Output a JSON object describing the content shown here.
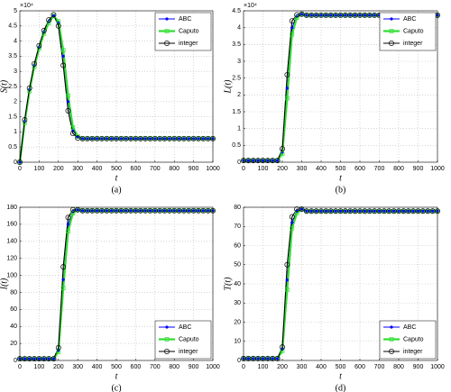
{
  "chart_data": [
    {
      "type": "line",
      "ylabel": "S(t)",
      "xlabel": "t",
      "caption": "(a)",
      "y_multiplier": "×10⁴",
      "xlim": [
        0,
        1000
      ],
      "xticks": [
        0,
        100,
        200,
        300,
        400,
        500,
        600,
        700,
        800,
        900,
        1000
      ],
      "ylim": [
        0,
        5
      ],
      "yticks": [
        0,
        0.5,
        1,
        1.5,
        2,
        2.5,
        3,
        3.5,
        4,
        4.5,
        5
      ],
      "grid": true,
      "legend": "upper right",
      "x": [
        0,
        25,
        50,
        75,
        100,
        125,
        150,
        175,
        200,
        225,
        250,
        275,
        300,
        325,
        350,
        375,
        400,
        425,
        450,
        475,
        500,
        525,
        550,
        575,
        600,
        625,
        650,
        675,
        700,
        725,
        750,
        775,
        800,
        825,
        850,
        875,
        900,
        925,
        950,
        975,
        1000
      ],
      "series": [
        {
          "name": "ABC",
          "color": "#0000ff",
          "marker": "dot",
          "values": [
            0,
            1.35,
            2.4,
            3.2,
            3.8,
            4.3,
            4.65,
            4.85,
            4.6,
            3.5,
            2.0,
            1.05,
            0.82,
            0.78,
            0.78,
            0.78,
            0.78,
            0.78,
            0.78,
            0.78,
            0.78,
            0.78,
            0.78,
            0.78,
            0.78,
            0.78,
            0.78,
            0.78,
            0.78,
            0.78,
            0.78,
            0.78,
            0.78,
            0.78,
            0.78,
            0.78,
            0.78,
            0.78,
            0.78,
            0.78,
            0.78
          ]
        },
        {
          "name": "Caputo",
          "color": "#33dd33",
          "marker": "square",
          "values": [
            0,
            1.3,
            2.35,
            3.15,
            3.75,
            4.25,
            4.6,
            4.83,
            4.65,
            3.7,
            2.2,
            1.15,
            0.85,
            0.78,
            0.78,
            0.78,
            0.78,
            0.78,
            0.78,
            0.78,
            0.78,
            0.78,
            0.78,
            0.78,
            0.78,
            0.78,
            0.78,
            0.78,
            0.78,
            0.78,
            0.78,
            0.78,
            0.78,
            0.78,
            0.78,
            0.78,
            0.78,
            0.78,
            0.78,
            0.78,
            0.78
          ]
        },
        {
          "name": "integer",
          "color": "#000000",
          "marker": "circle",
          "values": [
            0,
            1.4,
            2.45,
            3.25,
            3.85,
            4.35,
            4.7,
            4.87,
            4.5,
            3.2,
            1.7,
            0.95,
            0.8,
            0.78,
            0.78,
            0.78,
            0.78,
            0.78,
            0.78,
            0.78,
            0.78,
            0.78,
            0.78,
            0.78,
            0.78,
            0.78,
            0.78,
            0.78,
            0.78,
            0.78,
            0.78,
            0.78,
            0.78,
            0.78,
            0.78,
            0.78,
            0.78,
            0.78,
            0.78,
            0.78,
            0.78
          ]
        }
      ]
    },
    {
      "type": "line",
      "ylabel": "L(t)",
      "xlabel": "t",
      "caption": "(b)",
      "y_multiplier": "×10⁴",
      "xlim": [
        0,
        1000
      ],
      "xticks": [
        0,
        100,
        200,
        300,
        400,
        500,
        600,
        700,
        800,
        900,
        1000
      ],
      "ylim": [
        0,
        4.5
      ],
      "yticks": [
        0,
        0.5,
        1,
        1.5,
        2,
        2.5,
        3,
        3.5,
        4,
        4.5
      ],
      "grid": true,
      "legend": "upper right",
      "x": [
        0,
        25,
        50,
        75,
        100,
        125,
        150,
        175,
        200,
        225,
        250,
        275,
        300,
        325,
        350,
        375,
        400,
        425,
        450,
        475,
        500,
        525,
        550,
        575,
        600,
        625,
        650,
        675,
        700,
        725,
        750,
        775,
        800,
        825,
        850,
        875,
        900,
        925,
        950,
        975,
        1000
      ],
      "series": [
        {
          "name": "ABC",
          "color": "#0000ff",
          "marker": "dot",
          "values": [
            0.05,
            0.05,
            0.05,
            0.05,
            0.05,
            0.05,
            0.05,
            0.05,
            0.3,
            2.2,
            4.0,
            4.35,
            4.4,
            4.37,
            4.37,
            4.37,
            4.37,
            4.37,
            4.37,
            4.37,
            4.37,
            4.37,
            4.37,
            4.37,
            4.37,
            4.37,
            4.37,
            4.37,
            4.37,
            4.37,
            4.37,
            4.37,
            4.37,
            4.37,
            4.37,
            4.37,
            4.37,
            4.37,
            4.37,
            4.37,
            4.37
          ]
        },
        {
          "name": "Caputo",
          "color": "#33dd33",
          "marker": "square",
          "values": [
            0.05,
            0.05,
            0.05,
            0.05,
            0.05,
            0.05,
            0.05,
            0.05,
            0.25,
            1.9,
            3.8,
            4.3,
            4.4,
            4.37,
            4.37,
            4.37,
            4.37,
            4.37,
            4.37,
            4.37,
            4.37,
            4.37,
            4.37,
            4.37,
            4.37,
            4.37,
            4.37,
            4.37,
            4.37,
            4.37,
            4.37,
            4.37,
            4.37,
            4.37,
            4.37,
            4.37,
            4.37,
            4.37,
            4.37,
            4.37,
            4.37
          ]
        },
        {
          "name": "integer",
          "color": "#000000",
          "marker": "circle",
          "values": [
            0.05,
            0.05,
            0.05,
            0.05,
            0.05,
            0.05,
            0.05,
            0.05,
            0.4,
            2.6,
            4.2,
            4.38,
            4.4,
            4.37,
            4.37,
            4.37,
            4.37,
            4.37,
            4.37,
            4.37,
            4.37,
            4.37,
            4.37,
            4.37,
            4.37,
            4.37,
            4.37,
            4.37,
            4.37,
            4.37,
            4.37,
            4.37,
            4.37,
            4.37,
            4.37,
            4.37,
            4.37,
            4.37,
            4.37,
            4.37,
            4.37
          ]
        }
      ]
    },
    {
      "type": "line",
      "ylabel": "I(t)",
      "xlabel": "t",
      "caption": "(c)",
      "xlim": [
        0,
        1000
      ],
      "xticks": [
        0,
        100,
        200,
        300,
        400,
        500,
        600,
        700,
        800,
        900,
        1000
      ],
      "ylim": [
        0,
        180
      ],
      "yticks": [
        0,
        20,
        40,
        60,
        80,
        100,
        120,
        140,
        160,
        180
      ],
      "grid": true,
      "legend": "lower right",
      "x": [
        0,
        25,
        50,
        75,
        100,
        125,
        150,
        175,
        200,
        225,
        250,
        275,
        300,
        325,
        350,
        375,
        400,
        425,
        450,
        475,
        500,
        525,
        550,
        575,
        600,
        625,
        650,
        675,
        700,
        725,
        750,
        775,
        800,
        825,
        850,
        875,
        900,
        925,
        950,
        975,
        1000
      ],
      "series": [
        {
          "name": "ABC",
          "color": "#0000ff",
          "marker": "dot",
          "values": [
            2,
            2,
            2,
            2,
            2,
            2,
            2,
            2,
            12,
            95,
            160,
            175,
            177,
            176,
            176,
            176,
            176,
            176,
            176,
            176,
            176,
            176,
            176,
            176,
            176,
            176,
            176,
            176,
            176,
            176,
            176,
            176,
            176,
            176,
            176,
            176,
            176,
            176,
            176,
            176,
            176
          ]
        },
        {
          "name": "Caputo",
          "color": "#33dd33",
          "marker": "square",
          "values": [
            2,
            2,
            2,
            2,
            2,
            2,
            2,
            2,
            10,
            85,
            152,
            173,
            177,
            176,
            176,
            176,
            176,
            176,
            176,
            176,
            176,
            176,
            176,
            176,
            176,
            176,
            176,
            176,
            176,
            176,
            176,
            176,
            176,
            176,
            176,
            176,
            176,
            176,
            176,
            176,
            176
          ]
        },
        {
          "name": "integer",
          "color": "#000000",
          "marker": "circle",
          "values": [
            2,
            2,
            2,
            2,
            2,
            2,
            2,
            2,
            15,
            110,
            168,
            177,
            177,
            176,
            176,
            176,
            176,
            176,
            176,
            176,
            176,
            176,
            176,
            176,
            176,
            176,
            176,
            176,
            176,
            176,
            176,
            176,
            176,
            176,
            176,
            176,
            176,
            176,
            176,
            176,
            176
          ]
        }
      ]
    },
    {
      "type": "line",
      "ylabel": "T(t)",
      "xlabel": "t",
      "caption": "(d)",
      "xlim": [
        0,
        1000
      ],
      "xticks": [
        0,
        100,
        200,
        300,
        400,
        500,
        600,
        700,
        800,
        900,
        1000
      ],
      "ylim": [
        0,
        80
      ],
      "yticks": [
        0,
        10,
        20,
        30,
        40,
        50,
        60,
        70,
        80
      ],
      "grid": true,
      "legend": "lower right",
      "x": [
        0,
        25,
        50,
        75,
        100,
        125,
        150,
        175,
        200,
        225,
        250,
        275,
        300,
        325,
        350,
        375,
        400,
        425,
        450,
        475,
        500,
        525,
        550,
        575,
        600,
        625,
        650,
        675,
        700,
        725,
        750,
        775,
        800,
        825,
        850,
        875,
        900,
        925,
        950,
        975,
        1000
      ],
      "series": [
        {
          "name": "ABC",
          "color": "#0000ff",
          "marker": "dot",
          "values": [
            1,
            1,
            1,
            1,
            1,
            1,
            1,
            1,
            6,
            42,
            72,
            78,
            79,
            78,
            78,
            78,
            78,
            78,
            78,
            78,
            78,
            78,
            78,
            78,
            78,
            78,
            78,
            78,
            78,
            78,
            78,
            78,
            78,
            78,
            78,
            78,
            78,
            78,
            78,
            78,
            78
          ]
        },
        {
          "name": "Caputo",
          "color": "#33dd33",
          "marker": "square",
          "values": [
            1,
            1,
            1,
            1,
            1,
            1,
            1,
            1,
            5,
            37,
            69,
            77,
            79,
            78,
            78,
            78,
            78,
            78,
            78,
            78,
            78,
            78,
            78,
            78,
            78,
            78,
            78,
            78,
            78,
            78,
            78,
            78,
            78,
            78,
            78,
            78,
            78,
            78,
            78,
            78,
            78
          ]
        },
        {
          "name": "integer",
          "color": "#000000",
          "marker": "circle",
          "values": [
            1,
            1,
            1,
            1,
            1,
            1,
            1,
            1,
            7,
            50,
            75,
            79,
            79,
            78,
            78,
            78,
            78,
            78,
            78,
            78,
            78,
            78,
            78,
            78,
            78,
            78,
            78,
            78,
            78,
            78,
            78,
            78,
            78,
            78,
            78,
            78,
            78,
            78,
            78,
            78,
            78
          ]
        }
      ]
    }
  ]
}
